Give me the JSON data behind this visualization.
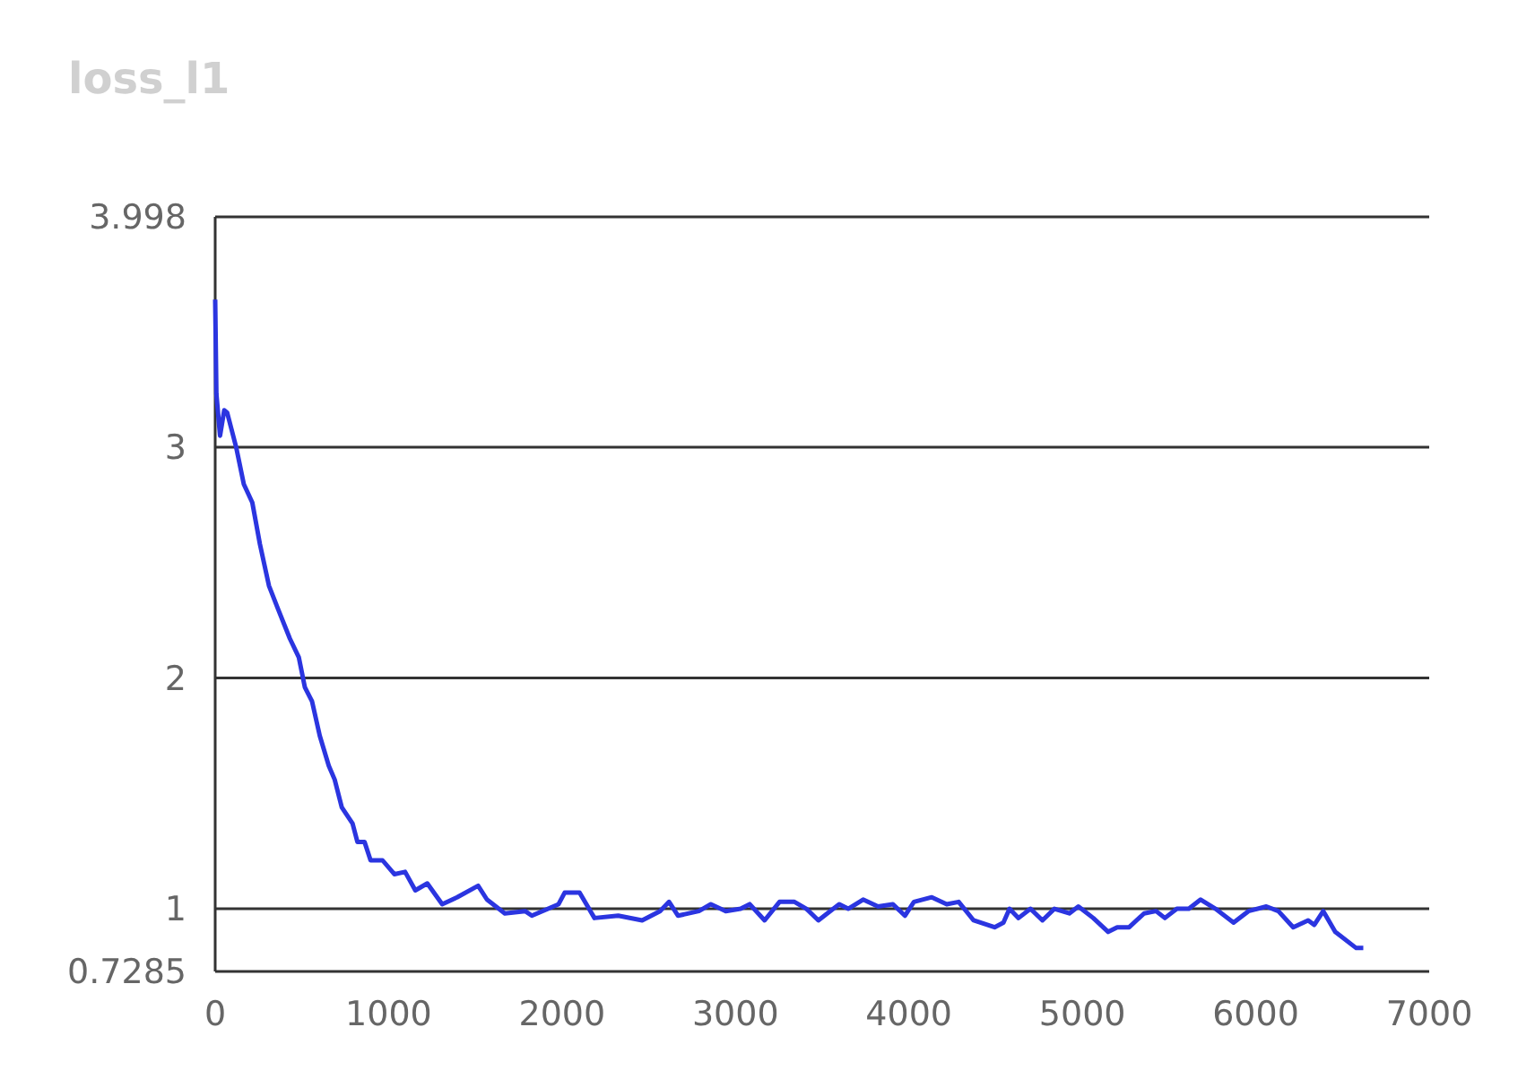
{
  "chart_data": {
    "type": "line",
    "title": "loss_l1",
    "xlim": [
      0,
      7000
    ],
    "xticks": [
      0,
      1000,
      2000,
      3000,
      4000,
      5000,
      6000,
      7000
    ],
    "ylim": [
      0.7285,
      3.998
    ],
    "yticks": [
      0.7285,
      1,
      2,
      3,
      3.998
    ],
    "grid": "y",
    "marker": "none",
    "line_style": "solid",
    "series": [
      {
        "color": "#2b35e0",
        "x": [
          0,
          7,
          28,
          52,
          69,
          121,
          165,
          214,
          258,
          310,
          362,
          431,
          482,
          517,
          558,
          603,
          655,
          689,
          730,
          792,
          820,
          861,
          896,
          965,
          1033,
          1095,
          1154,
          1223,
          1309,
          1395,
          1516,
          1567,
          1670,
          1787,
          1826,
          1980,
          2015,
          2101,
          2187,
          2324,
          2462,
          2565,
          2617,
          2669,
          2789,
          2858,
          2944,
          3030,
          3082,
          3168,
          3254,
          3340,
          3409,
          3478,
          3598,
          3650,
          3736,
          3822,
          3908,
          3977,
          4029,
          4132,
          4218,
          4287,
          4373,
          4494,
          4545,
          4580,
          4632,
          4701,
          4770,
          4839,
          4925,
          4977,
          5063,
          5149,
          5201,
          5270,
          5356,
          5425,
          5476,
          5545,
          5614,
          5682,
          5768,
          5872,
          5958,
          6061,
          6130,
          6216,
          6302,
          6337,
          6389,
          6458,
          6579,
          6620
        ],
        "values": [
          3.64,
          3.23,
          3.05,
          3.16,
          3.15,
          3.0,
          2.84,
          2.76,
          2.58,
          2.4,
          2.3,
          2.17,
          2.09,
          1.96,
          1.9,
          1.75,
          1.62,
          1.56,
          1.44,
          1.37,
          1.29,
          1.29,
          1.21,
          1.21,
          1.15,
          1.16,
          1.08,
          1.11,
          1.02,
          1.05,
          1.1,
          1.04,
          0.98,
          0.99,
          0.97,
          1.02,
          1.07,
          1.07,
          0.96,
          0.97,
          0.95,
          0.99,
          1.03,
          0.97,
          0.99,
          1.02,
          0.99,
          1.0,
          1.02,
          0.95,
          1.03,
          1.03,
          1.0,
          0.95,
          1.02,
          1.0,
          1.04,
          1.01,
          1.02,
          0.97,
          1.03,
          1.05,
          1.02,
          1.03,
          0.95,
          0.92,
          0.94,
          1.0,
          0.96,
          1.0,
          0.95,
          1.0,
          0.98,
          1.01,
          0.96,
          0.9,
          0.92,
          0.92,
          0.98,
          0.99,
          0.96,
          1.0,
          1.0,
          1.04,
          1.0,
          0.94,
          0.99,
          1.01,
          0.99,
          0.92,
          0.95,
          0.93,
          0.99,
          0.9,
          0.83,
          0.83
        ]
      }
    ]
  }
}
